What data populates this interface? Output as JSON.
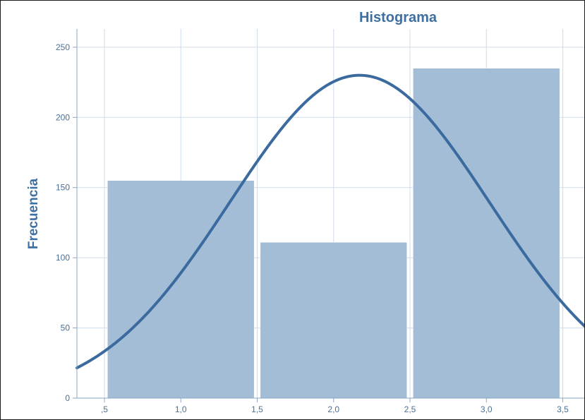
{
  "chart_data": {
    "type": "bar",
    "title": "Histograma",
    "xlabel": "",
    "ylabel": "Frecuencia",
    "xlim": [
      0.32,
      3.65
    ],
    "ylim": [
      0,
      263
    ],
    "x_ticks": [
      0.5,
      1.0,
      1.5,
      2.0,
      2.5,
      3.0,
      3.5
    ],
    "x_tick_labels": [
      ",5",
      "1,0",
      "1,5",
      "2,0",
      "2,5",
      "3,0",
      "3,5"
    ],
    "y_ticks": [
      0,
      50,
      100,
      150,
      200,
      250
    ],
    "y_tick_labels": [
      "0",
      "50",
      "100",
      "150",
      "200",
      "250"
    ],
    "bins": [
      {
        "start": 0.52,
        "end": 1.48,
        "value": 155
      },
      {
        "start": 1.52,
        "end": 2.48,
        "value": 111
      },
      {
        "start": 2.52,
        "end": 3.48,
        "value": 235
      }
    ],
    "normal_curve": {
      "mean": 2.17,
      "sd": 0.85,
      "peak": 230
    },
    "grid": true,
    "colors": {
      "bar": "#a3bdd7",
      "curve": "#3b6b9e",
      "text": "#3d6fa3",
      "grid": "#cfdcea"
    }
  }
}
